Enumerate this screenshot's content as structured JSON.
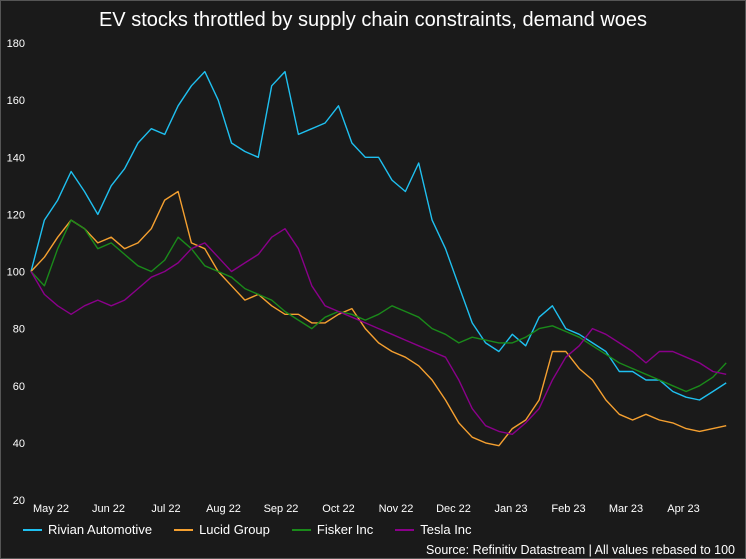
{
  "chart_data": {
    "type": "line",
    "title": "EV stocks throttled by supply chain constraints, demand woes",
    "source": "Source: Refinitiv Datastream | All values rebased to 100",
    "xlabel": "",
    "ylabel": "",
    "ylim": [
      20,
      180
    ],
    "yticks": [
      180,
      160,
      140,
      120,
      100,
      80,
      60,
      40,
      20
    ],
    "xticks": [
      "May 22",
      "Jun 22",
      "Jul 22",
      "Aug 22",
      "Sep 22",
      "Oct 22",
      "Nov 22",
      "Dec 22",
      "Jan 23",
      "Feb 23",
      "Mar 23",
      "Apr 23"
    ],
    "x_start": "2022-04-29",
    "x_step_days": 7,
    "grid": false,
    "legend_placement": "bottom",
    "series": [
      {
        "name": "Rivian Automotive",
        "color": "#1fc0f0",
        "values": [
          100,
          118,
          125,
          135,
          128,
          120,
          130,
          136,
          145,
          150,
          148,
          158,
          165,
          170,
          160,
          145,
          142,
          140,
          165,
          170,
          148,
          150,
          152,
          158,
          145,
          140,
          140,
          132,
          128,
          138,
          118,
          108,
          95,
          82,
          75,
          72,
          78,
          74,
          84,
          88,
          80,
          78,
          75,
          72,
          65,
          65,
          62,
          62,
          58,
          56,
          55,
          58,
          61
        ]
      },
      {
        "name": "Lucid Group",
        "color": "#f5a030",
        "values": [
          100,
          105,
          112,
          118,
          115,
          110,
          112,
          108,
          110,
          115,
          125,
          128,
          110,
          108,
          100,
          95,
          90,
          92,
          88,
          85,
          85,
          82,
          82,
          85,
          87,
          80,
          75,
          72,
          70,
          67,
          62,
          55,
          47,
          42,
          40,
          39,
          45,
          48,
          55,
          72,
          72,
          66,
          62,
          55,
          50,
          48,
          50,
          48,
          47,
          45,
          44,
          45,
          46
        ]
      },
      {
        "name": "Fisker Inc",
        "color": "#1a8a1a",
        "values": [
          100,
          95,
          108,
          118,
          115,
          108,
          110,
          106,
          102,
          100,
          104,
          112,
          108,
          102,
          100,
          98,
          94,
          92,
          90,
          86,
          83,
          80,
          84,
          86,
          85,
          83,
          85,
          88,
          86,
          84,
          80,
          78,
          75,
          77,
          76,
          75,
          75,
          77,
          80,
          81,
          79,
          77,
          74,
          71,
          68,
          66,
          64,
          62,
          60,
          58,
          60,
          63,
          68
        ]
      },
      {
        "name": "Tesla Inc",
        "color": "#8a008a",
        "values": [
          100,
          92,
          88,
          85,
          88,
          90,
          88,
          90,
          94,
          98,
          100,
          103,
          108,
          110,
          105,
          100,
          103,
          106,
          112,
          115,
          108,
          95,
          88,
          86,
          84,
          82,
          80,
          78,
          76,
          74,
          72,
          70,
          62,
          52,
          46,
          44,
          43,
          47,
          52,
          62,
          70,
          74,
          80,
          78,
          75,
          72,
          68,
          72,
          72,
          70,
          68,
          65,
          64
        ]
      }
    ]
  }
}
